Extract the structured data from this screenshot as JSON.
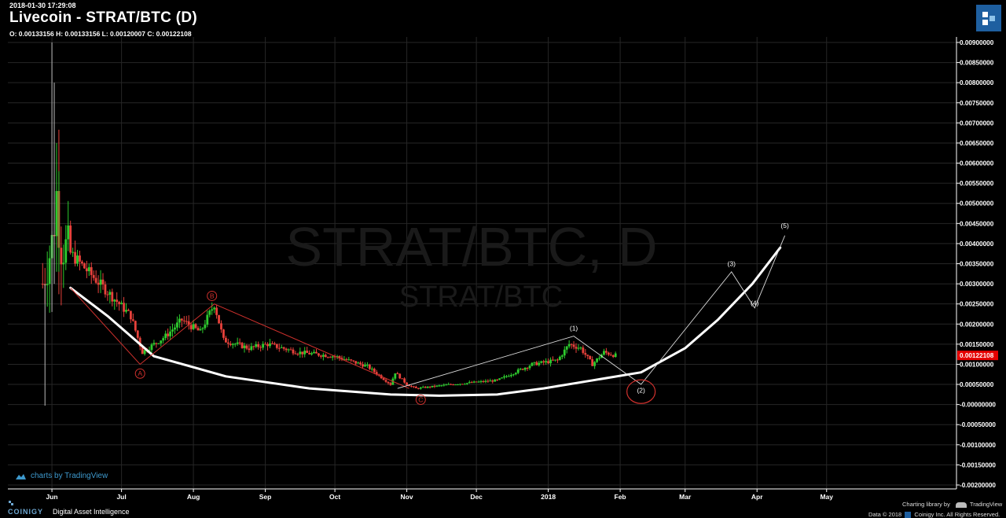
{
  "header": {
    "timestamp": "2018-01-30 17:29:08",
    "title": "Livecoin - STRAT/BTC (D)",
    "ohlc": "O: 0.00133156 H: 0.00133156 L: 0.00120007 C: 0.00122108"
  },
  "watermark": {
    "main": "STRAT/BTC, D",
    "sub": "STRAT/BTC"
  },
  "branding": {
    "tv_link": "charts by TradingView",
    "coinigy": "COINIGY",
    "tagline": "Digital Asset Intelligence",
    "charting_library": "Charting library by",
    "tradingview": "TradingView",
    "copyright": "Data © 2018",
    "copyright_rest": "Coinigy Inc. All Rights Reserved."
  },
  "colors": {
    "up": "#2ecc2e",
    "down": "#e8413b",
    "grid": "#262626",
    "price_tag": "#e60000",
    "annotation_red": "#d0312d",
    "annotation_white": "#ffffff"
  },
  "chart_data": {
    "type": "candlestick",
    "y_axis_ticks": [
      "0.00900000",
      "0.00850000",
      "0.00800000",
      "0.00750000",
      "0.00700000",
      "0.00650000",
      "0.00600000",
      "0.00550000",
      "0.00500000",
      "0.00450000",
      "0.00400000",
      "0.00350000",
      "0.00300000",
      "0.00250000",
      "0.00200000",
      "0.00150000",
      "0.00100000",
      "0.00050000",
      "-0.00000000",
      "-0.00050000",
      "-0.00100000",
      "-0.00150000",
      "-0.00200000"
    ],
    "ylim": [
      -0.0021,
      0.0091
    ],
    "x_axis_ticks": [
      {
        "label": "Jun",
        "date": "2017-06-01"
      },
      {
        "label": "Jul",
        "date": "2017-07-01"
      },
      {
        "label": "Aug",
        "date": "2017-08-01"
      },
      {
        "label": "Sep",
        "date": "2017-09-01"
      },
      {
        "label": "Oct",
        "date": "2017-10-01"
      },
      {
        "label": "Nov",
        "date": "2017-11-01"
      },
      {
        "label": "Dec",
        "date": "2017-12-01"
      },
      {
        "label": "2018",
        "date": "2018-01-01"
      },
      {
        "label": "Feb",
        "date": "2018-02-01"
      },
      {
        "label": "Mar",
        "date": "2018-03-01"
      },
      {
        "label": "Apr",
        "date": "2018-04-01"
      },
      {
        "label": "May",
        "date": "2018-05-01"
      }
    ],
    "xlim": [
      "2017-05-13",
      "2018-06-26"
    ],
    "last_price": "0.00122108",
    "last_price_value": 0.00122108,
    "price_key_points": [
      {
        "date": "2017-05-28",
        "price": 0.003
      },
      {
        "date": "2017-06-01",
        "price": 0.004
      },
      {
        "date": "2017-06-03",
        "price": 0.0052
      },
      {
        "date": "2017-06-05",
        "price": 0.004
      },
      {
        "date": "2017-06-15",
        "price": 0.0034
      },
      {
        "date": "2017-06-25",
        "price": 0.0028
      },
      {
        "date": "2017-07-05",
        "price": 0.0022
      },
      {
        "date": "2017-07-10",
        "price": 0.0013
      },
      {
        "date": "2017-07-20",
        "price": 0.0017
      },
      {
        "date": "2017-07-27",
        "price": 0.0021
      },
      {
        "date": "2017-08-04",
        "price": 0.0018
      },
      {
        "date": "2017-08-10",
        "price": 0.0025
      },
      {
        "date": "2017-08-14",
        "price": 0.0016
      },
      {
        "date": "2017-08-25",
        "price": 0.0014
      },
      {
        "date": "2017-09-02",
        "price": 0.0015
      },
      {
        "date": "2017-09-15",
        "price": 0.0013
      },
      {
        "date": "2017-10-01",
        "price": 0.0012
      },
      {
        "date": "2017-10-15",
        "price": 0.00095
      },
      {
        "date": "2017-10-25",
        "price": 0.0005
      },
      {
        "date": "2017-10-27",
        "price": 0.0008
      },
      {
        "date": "2017-11-01",
        "price": 0.0005
      },
      {
        "date": "2017-11-05",
        "price": 0.0004
      },
      {
        "date": "2017-11-20",
        "price": 0.0005
      },
      {
        "date": "2017-12-10",
        "price": 0.0006
      },
      {
        "date": "2017-12-25",
        "price": 0.001
      },
      {
        "date": "2018-01-05",
        "price": 0.0011
      },
      {
        "date": "2018-01-10",
        "price": 0.0015
      },
      {
        "date": "2018-01-15",
        "price": 0.0014
      },
      {
        "date": "2018-01-20",
        "price": 0.001
      },
      {
        "date": "2018-01-25",
        "price": 0.0013
      },
      {
        "date": "2018-01-30",
        "price": 0.00122
      }
    ],
    "red_abc": {
      "points": [
        {
          "date": "2017-06-09",
          "price": 0.0029
        },
        {
          "date": "2017-07-09",
          "price": 0.001
        },
        {
          "date": "2017-08-10",
          "price": 0.0025
        },
        {
          "date": "2017-11-02",
          "price": 0.0004
        }
      ],
      "labels": [
        {
          "text": "A",
          "date": "2017-07-09",
          "price": 0.00077
        },
        {
          "text": "B",
          "date": "2017-08-09",
          "price": 0.0027
        },
        {
          "text": "C",
          "date": "2017-11-07",
          "price": 0.00012
        }
      ]
    },
    "white_wave": {
      "points": [
        {
          "date": "2017-10-28",
          "price": 0.0004
        },
        {
          "date": "2018-01-12",
          "price": 0.0017
        },
        {
          "date": "2018-02-10",
          "price": 0.0005
        },
        {
          "date": "2018-03-21",
          "price": 0.0033
        },
        {
          "date": "2018-03-31",
          "price": 0.0024
        },
        {
          "date": "2018-04-13",
          "price": 0.0042
        }
      ],
      "labels": [
        {
          "text": "(1)",
          "date": "2018-01-12",
          "price": 0.0019
        },
        {
          "text": "(2)",
          "date": "2018-02-10",
          "price": 0.00035
        },
        {
          "text": "(3)",
          "date": "2018-03-21",
          "price": 0.0035
        },
        {
          "text": "(4)",
          "date": "2018-03-31",
          "price": 0.00252
        },
        {
          "text": "(5)",
          "date": "2018-04-13",
          "price": 0.00445
        }
      ],
      "circle_around": {
        "date": "2018-02-10",
        "price": 0.00032
      }
    },
    "cup_curve": [
      {
        "date": "2017-06-09",
        "price": 0.0029
      },
      {
        "date": "2017-06-25",
        "price": 0.0022
      },
      {
        "date": "2017-07-15",
        "price": 0.0012
      },
      {
        "date": "2017-08-15",
        "price": 0.0007
      },
      {
        "date": "2017-09-20",
        "price": 0.0004
      },
      {
        "date": "2017-10-25",
        "price": 0.00025
      },
      {
        "date": "2017-11-15",
        "price": 0.00022
      },
      {
        "date": "2017-12-10",
        "price": 0.00025
      },
      {
        "date": "2017-12-30",
        "price": 0.0004
      },
      {
        "date": "2018-01-20",
        "price": 0.0006
      },
      {
        "date": "2018-02-10",
        "price": 0.0008
      },
      {
        "date": "2018-03-01",
        "price": 0.0014
      },
      {
        "date": "2018-03-15",
        "price": 0.0021
      },
      {
        "date": "2018-03-30",
        "price": 0.003
      },
      {
        "date": "2018-04-11",
        "price": 0.0039
      }
    ]
  }
}
